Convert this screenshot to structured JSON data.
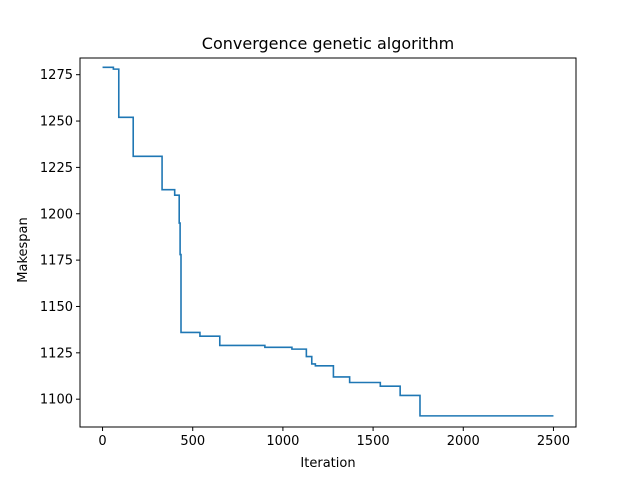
{
  "chart_data": {
    "type": "line",
    "step": "post",
    "title": "Convergence genetic algorithm",
    "xlabel": "Iteration",
    "ylabel": "Makespan",
    "xlim": [
      -125,
      2625
    ],
    "ylim": [
      1085,
      1284
    ],
    "xticks": [
      0,
      500,
      1000,
      1500,
      2000,
      2500
    ],
    "yticks": [
      1100,
      1125,
      1150,
      1175,
      1200,
      1225,
      1250,
      1275
    ],
    "grid": false,
    "color": "#1f77b4",
    "series": [
      {
        "x": [
          0,
          30,
          60,
          90,
          170,
          330,
          400,
          425,
          430,
          435,
          540,
          650,
          900,
          1050,
          1130,
          1160,
          1180,
          1200,
          1280,
          1370,
          1540,
          1650,
          1760,
          2500
        ],
        "y": [
          1279,
          1279,
          1278,
          1252,
          1231,
          1213,
          1210,
          1195,
          1178,
          1136,
          1134,
          1129,
          1128,
          1127,
          1123,
          1119,
          1118,
          1118,
          1112,
          1109,
          1107,
          1102,
          1091,
          1091
        ]
      }
    ]
  }
}
